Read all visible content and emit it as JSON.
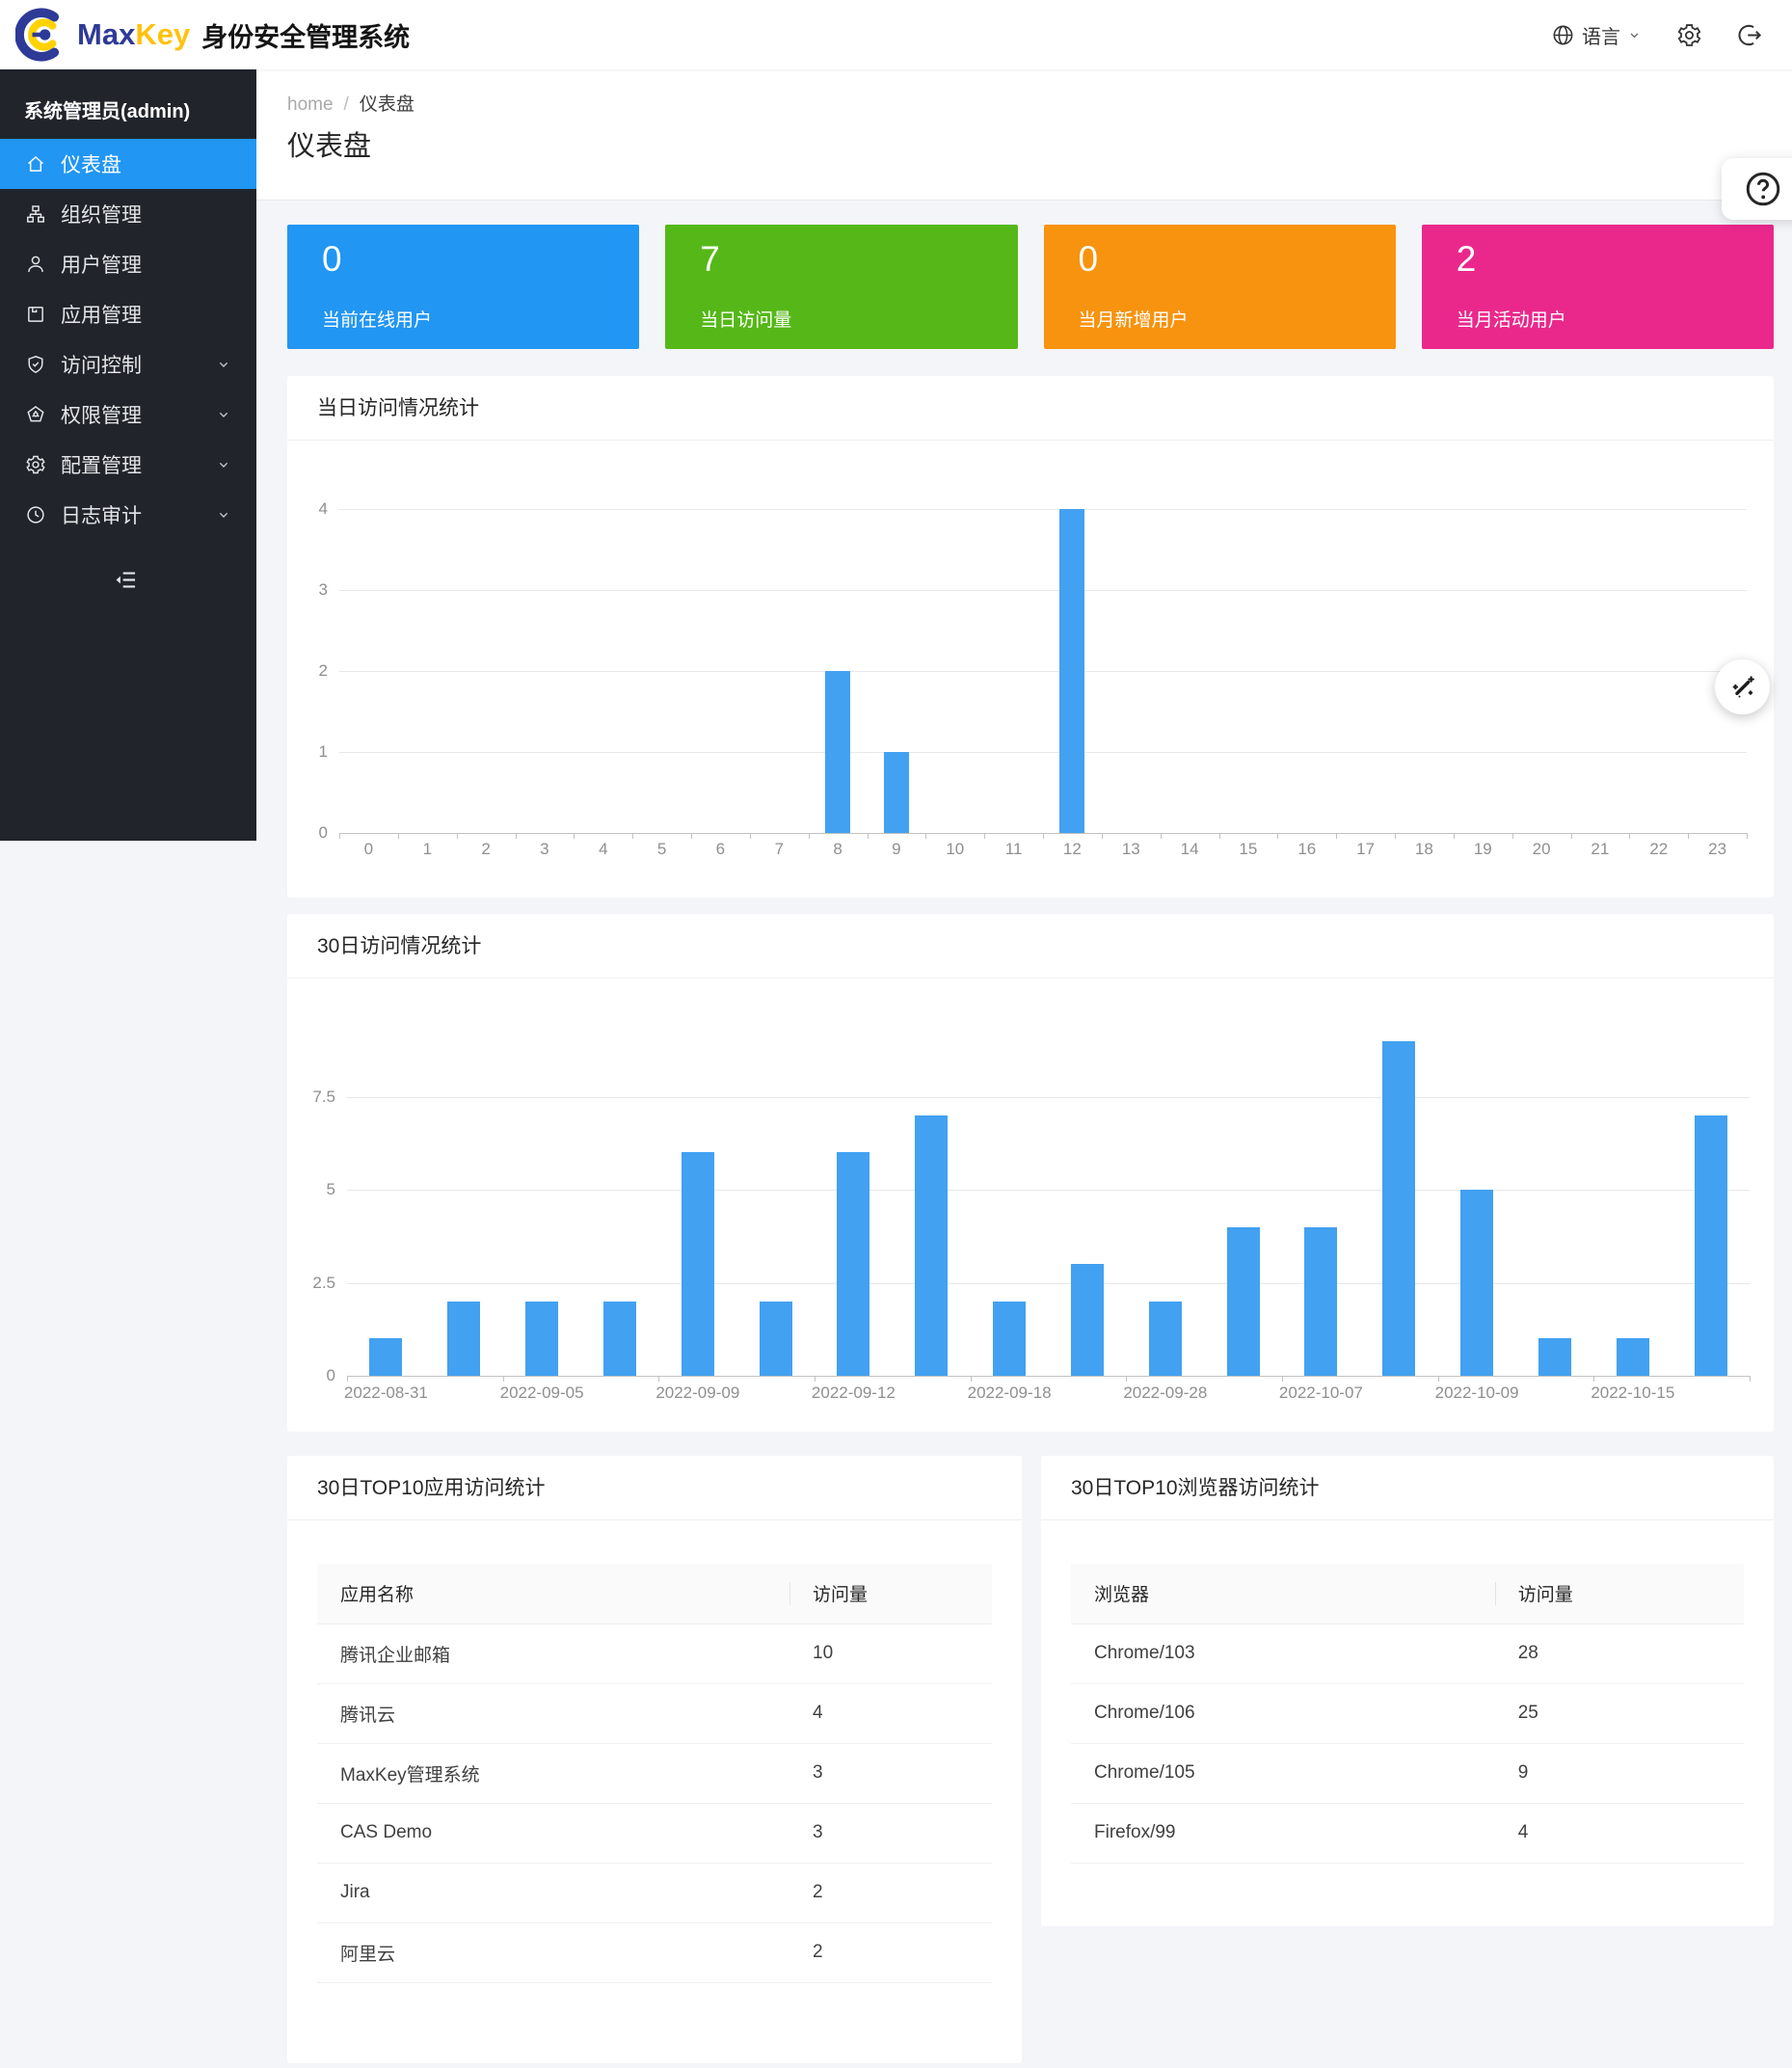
{
  "header": {
    "brand_max": "Max",
    "brand_key": "Key",
    "title": "身份安全管理系统",
    "lang_label": "语言"
  },
  "sidebar": {
    "admin": "系统管理员(admin)",
    "items": [
      {
        "key": "dashboard",
        "label": "仪表盘",
        "icon": "home",
        "active": true,
        "chevron": false
      },
      {
        "key": "org",
        "label": "组织管理",
        "icon": "org",
        "active": false,
        "chevron": false
      },
      {
        "key": "users",
        "label": "用户管理",
        "icon": "user",
        "active": false,
        "chevron": false
      },
      {
        "key": "apps",
        "label": "应用管理",
        "icon": "app",
        "active": false,
        "chevron": false
      },
      {
        "key": "access",
        "label": "访问控制",
        "icon": "shield",
        "active": false,
        "chevron": true
      },
      {
        "key": "perms",
        "label": "权限管理",
        "icon": "pentagon",
        "active": false,
        "chevron": true
      },
      {
        "key": "config",
        "label": "配置管理",
        "icon": "gear",
        "active": false,
        "chevron": true
      },
      {
        "key": "audit",
        "label": "日志审计",
        "icon": "clock",
        "active": false,
        "chevron": true
      }
    ]
  },
  "breadcrumb": {
    "home": "home",
    "sep": "/",
    "current": "仪表盘"
  },
  "page": {
    "title": "仪表盘"
  },
  "stats": [
    {
      "key": "online-users",
      "value": "0",
      "label": "当前在线用户",
      "color": "#2196f3"
    },
    {
      "key": "today-visits",
      "value": "7",
      "label": "当日访问量",
      "color": "#55b818"
    },
    {
      "key": "month-new-users",
      "value": "0",
      "label": "当月新增用户",
      "color": "#f7930f"
    },
    {
      "key": "month-active-users",
      "value": "2",
      "label": "当月活动用户",
      "color": "#ea288c"
    }
  ],
  "chart_data": [
    {
      "type": "bar",
      "title": "当日访问情况统计",
      "xlabel": "",
      "ylabel": "",
      "categories": [
        "0",
        "1",
        "2",
        "3",
        "4",
        "5",
        "6",
        "7",
        "8",
        "9",
        "10",
        "11",
        "12",
        "13",
        "14",
        "15",
        "16",
        "17",
        "18",
        "19",
        "20",
        "21",
        "22",
        "23"
      ],
      "values": [
        0,
        0,
        0,
        0,
        0,
        0,
        0,
        0,
        2,
        1,
        0,
        0,
        4,
        0,
        0,
        0,
        0,
        0,
        0,
        0,
        0,
        0,
        0,
        0
      ],
      "ylim": [
        0,
        4
      ],
      "yticks": [
        0,
        1,
        2,
        3,
        4
      ],
      "grid": true,
      "legend": "none",
      "bar_color": "#42a1f1"
    },
    {
      "type": "bar",
      "title": "30日访问情况统计",
      "xlabel": "",
      "ylabel": "",
      "categories": [
        "2022-08-31",
        "",
        "2022-09-05",
        "",
        "2022-09-09",
        "",
        "2022-09-12",
        "",
        "2022-09-18",
        "",
        "2022-09-28",
        "",
        "2022-10-07",
        "",
        "2022-10-09",
        "",
        "2022-10-15",
        ""
      ],
      "values": [
        1,
        2,
        2,
        2,
        6,
        2,
        6,
        7,
        2,
        3,
        2,
        4,
        4,
        9,
        5,
        1,
        1,
        7
      ],
      "ylim": [
        0,
        10
      ],
      "yticks": [
        0,
        2.5,
        5,
        7.5
      ],
      "grid": true,
      "legend": "none",
      "bar_color": "#42a1f1"
    }
  ],
  "tables": [
    {
      "title": "30日TOP10应用访问统计",
      "headers": [
        "应用名称",
        "访问量"
      ],
      "rows": [
        [
          "腾讯企业邮箱",
          "10"
        ],
        [
          "腾讯云",
          "4"
        ],
        [
          "MaxKey管理系统",
          "3"
        ],
        [
          "CAS Demo",
          "3"
        ],
        [
          "Jira",
          "2"
        ],
        [
          "阿里云",
          "2"
        ]
      ]
    },
    {
      "title": "30日TOP10浏览器访问统计",
      "headers": [
        "浏览器",
        "访问量"
      ],
      "rows": [
        [
          "Chrome/103",
          "28"
        ],
        [
          "Chrome/106",
          "25"
        ],
        [
          "Chrome/105",
          "9"
        ],
        [
          "Firefox/99",
          "4"
        ]
      ]
    }
  ]
}
